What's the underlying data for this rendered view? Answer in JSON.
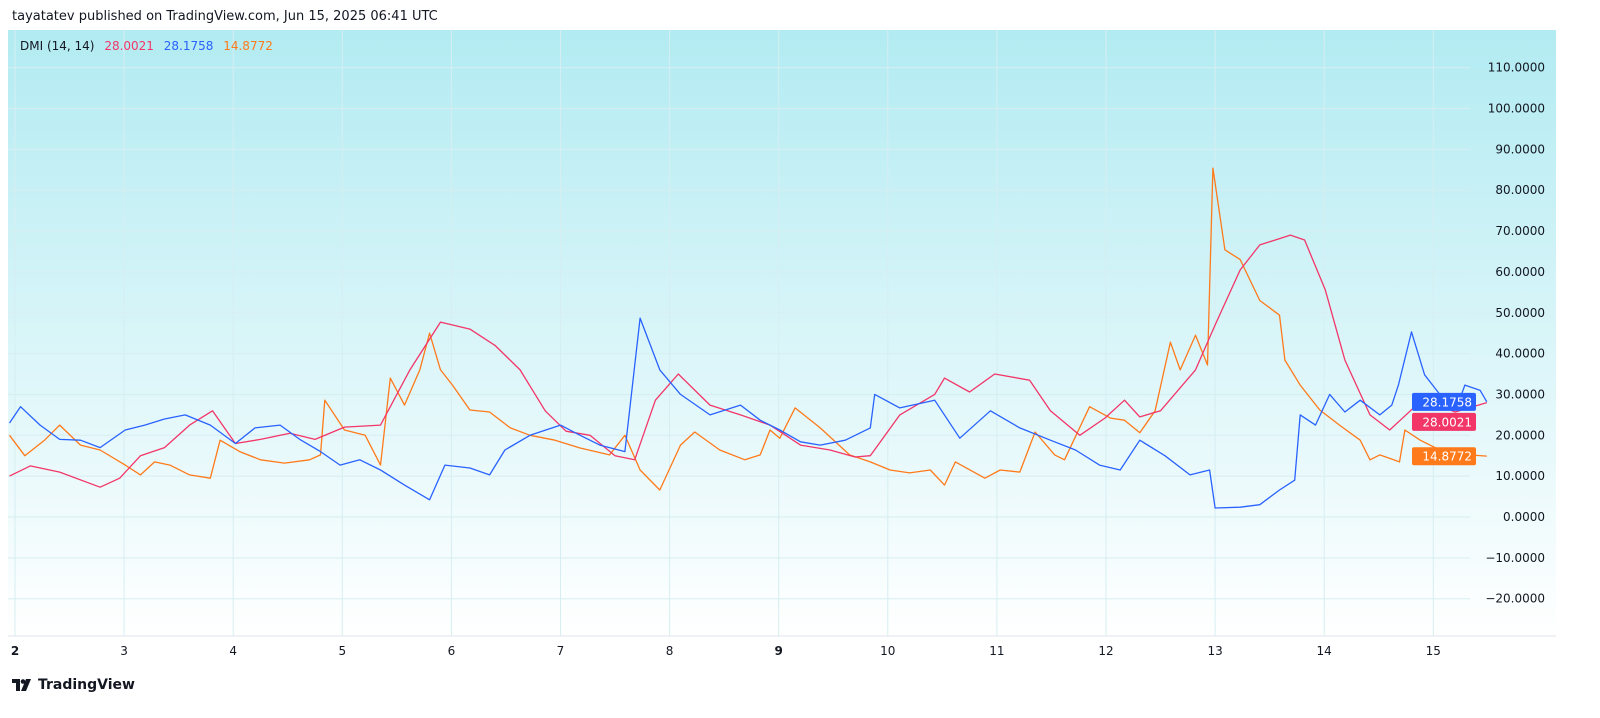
{
  "header": {
    "published": "tayatatev published on TradingView.com, Jun 15, 2025 06:41 UTC"
  },
  "legend": {
    "name": "DMI (14, 14)",
    "adx": "28.0021",
    "plus_di": "28.1758",
    "minus_di": "14.8772"
  },
  "footer": {
    "brand": "TradingView",
    "logo_icon": "tradingview-logo-icon"
  },
  "colors": {
    "adx": "#f23668",
    "plus_di": "#2962ff",
    "minus_di": "#ff7a1a",
    "bg_top": "#b2ebf2",
    "bg_bottom": "#ffffff"
  },
  "chart_data": {
    "type": "line",
    "title": "DMI (14, 14)",
    "xlim": [
      1.95,
      15.75
    ],
    "ylim": [
      -27,
      117
    ],
    "grid": true,
    "x_ticks": [
      {
        "v": 2,
        "label": "2",
        "bold": true
      },
      {
        "v": 3,
        "label": "3"
      },
      {
        "v": 4,
        "label": "4"
      },
      {
        "v": 5,
        "label": "5"
      },
      {
        "v": 6,
        "label": "6"
      },
      {
        "v": 7,
        "label": "7"
      },
      {
        "v": 8,
        "label": "8"
      },
      {
        "v": 9,
        "label": "9",
        "bold": true
      },
      {
        "v": 10,
        "label": "10"
      },
      {
        "v": 11,
        "label": "11"
      },
      {
        "v": 12,
        "label": "12"
      },
      {
        "v": 13,
        "label": "13"
      },
      {
        "v": 14,
        "label": "14"
      },
      {
        "v": 15,
        "label": "15"
      }
    ],
    "y_ticks": [
      {
        "v": 110,
        "label": "110.0000"
      },
      {
        "v": 100,
        "label": "100.0000"
      },
      {
        "v": 90,
        "label": "90.0000"
      },
      {
        "v": 80,
        "label": "80.0000"
      },
      {
        "v": 70,
        "label": "70.0000"
      },
      {
        "v": 60,
        "label": "60.0000"
      },
      {
        "v": 50,
        "label": "50.0000"
      },
      {
        "v": 40,
        "label": "40.0000"
      },
      {
        "v": 30,
        "label": "30.0000"
      },
      {
        "v": 20,
        "label": "20.0000"
      },
      {
        "v": 10,
        "label": "10.0000"
      },
      {
        "v": 0,
        "label": "0.0000"
      },
      {
        "v": -10,
        "label": "−10.0000"
      },
      {
        "v": -20,
        "label": "−20.0000"
      }
    ],
    "series": [
      {
        "key": "minus_di",
        "color": "#ff7a1a",
        "last_label": "14.8772",
        "last": 14.8772,
        "points": [
          [
            1.95,
            20
          ],
          [
            2.09,
            15
          ],
          [
            2.27,
            18.8
          ],
          [
            2.41,
            22.5
          ],
          [
            2.6,
            17.6
          ],
          [
            2.78,
            16.4
          ],
          [
            3.01,
            12.7
          ],
          [
            3.15,
            10.3
          ],
          [
            3.28,
            13.5
          ],
          [
            3.42,
            12.7
          ],
          [
            3.6,
            10.3
          ],
          [
            3.79,
            9.5
          ],
          [
            3.88,
            18.8
          ],
          [
            4.06,
            16
          ],
          [
            4.25,
            14
          ],
          [
            4.47,
            13.2
          ],
          [
            4.7,
            14
          ],
          [
            4.8,
            15.2
          ],
          [
            4.84,
            28.6
          ],
          [
            5.02,
            21.3
          ],
          [
            5.21,
            20
          ],
          [
            5.35,
            12.7
          ],
          [
            5.44,
            34
          ],
          [
            5.57,
            27.4
          ],
          [
            5.71,
            36
          ],
          [
            5.8,
            45
          ],
          [
            5.9,
            36
          ],
          [
            6.01,
            32.3
          ],
          [
            6.17,
            26.2
          ],
          [
            6.35,
            25.7
          ],
          [
            6.54,
            21.8
          ],
          [
            6.72,
            20
          ],
          [
            6.95,
            18.8
          ],
          [
            7.18,
            16.9
          ],
          [
            7.45,
            15.2
          ],
          [
            7.59,
            20
          ],
          [
            7.73,
            11.5
          ],
          [
            7.91,
            6.6
          ],
          [
            8.1,
            17.6
          ],
          [
            8.23,
            20.8
          ],
          [
            8.46,
            16.4
          ],
          [
            8.69,
            14
          ],
          [
            8.83,
            15.2
          ],
          [
            8.92,
            21.3
          ],
          [
            9.01,
            19.3
          ],
          [
            9.15,
            26.7
          ],
          [
            9.38,
            21.8
          ],
          [
            9.65,
            15.2
          ],
          [
            9.84,
            13.5
          ],
          [
            10.02,
            11.5
          ],
          [
            10.2,
            10.8
          ],
          [
            10.39,
            11.5
          ],
          [
            10.52,
            7.8
          ],
          [
            10.62,
            13.5
          ],
          [
            10.89,
            9.5
          ],
          [
            11.03,
            11.5
          ],
          [
            11.21,
            11
          ],
          [
            11.35,
            20.8
          ],
          [
            11.53,
            15.2
          ],
          [
            11.62,
            14
          ],
          [
            11.85,
            27
          ],
          [
            12.04,
            24.2
          ],
          [
            12.17,
            23.7
          ],
          [
            12.31,
            20.6
          ],
          [
            12.45,
            26
          ],
          [
            12.59,
            42.8
          ],
          [
            12.68,
            36
          ],
          [
            12.82,
            44.5
          ],
          [
            12.93,
            37.2
          ],
          [
            12.98,
            85.4
          ],
          [
            13.09,
            65.4
          ],
          [
            13.23,
            63
          ],
          [
            13.41,
            53
          ],
          [
            13.59,
            49.4
          ],
          [
            13.64,
            38.4
          ],
          [
            13.78,
            32.3
          ],
          [
            13.96,
            26.2
          ],
          [
            14.14,
            22.5
          ],
          [
            14.33,
            18.8
          ],
          [
            14.42,
            14
          ],
          [
            14.51,
            15.2
          ],
          [
            14.69,
            13.5
          ],
          [
            14.74,
            21.3
          ],
          [
            14.88,
            18.8
          ],
          [
            15.06,
            16.4
          ],
          [
            15.33,
            15.2
          ],
          [
            15.49,
            14.9
          ]
        ]
      },
      {
        "key": "adx",
        "color": "#f23668",
        "last_label": "28.0021",
        "last": 28.0021,
        "points": [
          [
            1.95,
            10
          ],
          [
            2.14,
            12.5
          ],
          [
            2.41,
            11
          ],
          [
            2.78,
            7.3
          ],
          [
            2.96,
            9.5
          ],
          [
            3.15,
            15
          ],
          [
            3.37,
            17
          ],
          [
            3.6,
            22.5
          ],
          [
            3.81,
            26
          ],
          [
            4.02,
            18
          ],
          [
            4.25,
            19
          ],
          [
            4.52,
            20.5
          ],
          [
            4.75,
            19
          ],
          [
            5.02,
            22
          ],
          [
            5.35,
            22.5
          ],
          [
            5.62,
            36
          ],
          [
            5.9,
            47.7
          ],
          [
            6.17,
            46
          ],
          [
            6.4,
            42
          ],
          [
            6.63,
            36
          ],
          [
            6.86,
            26
          ],
          [
            7.05,
            21
          ],
          [
            7.27,
            20
          ],
          [
            7.5,
            15
          ],
          [
            7.68,
            14
          ],
          [
            7.87,
            28.6
          ],
          [
            8.08,
            35
          ],
          [
            8.37,
            27.4
          ],
          [
            8.65,
            25
          ],
          [
            8.92,
            22.5
          ],
          [
            9.2,
            17.6
          ],
          [
            9.47,
            16.4
          ],
          [
            9.7,
            14.7
          ],
          [
            9.84,
            15
          ],
          [
            10.11,
            25
          ],
          [
            10.43,
            30
          ],
          [
            10.52,
            34
          ],
          [
            10.75,
            30.6
          ],
          [
            10.98,
            35
          ],
          [
            11.3,
            33.5
          ],
          [
            11.49,
            26
          ],
          [
            11.76,
            20
          ],
          [
            11.99,
            24.2
          ],
          [
            12.17,
            28.6
          ],
          [
            12.31,
            24.5
          ],
          [
            12.5,
            26
          ],
          [
            12.82,
            36
          ],
          [
            13.0,
            47
          ],
          [
            13.23,
            60.5
          ],
          [
            13.41,
            66.6
          ],
          [
            13.69,
            69
          ],
          [
            13.82,
            67.8
          ],
          [
            14.01,
            55.6
          ],
          [
            14.19,
            38.4
          ],
          [
            14.42,
            25
          ],
          [
            14.6,
            21.3
          ],
          [
            14.83,
            27
          ],
          [
            15.02,
            27.7
          ],
          [
            15.2,
            25.7
          ],
          [
            15.49,
            28
          ]
        ]
      },
      {
        "key": "plus_di",
        "color": "#2962ff",
        "last_label": "28.1758",
        "last": 28.1758,
        "points": [
          [
            1.95,
            23
          ],
          [
            2.05,
            27
          ],
          [
            2.23,
            22.5
          ],
          [
            2.41,
            19
          ],
          [
            2.6,
            18.8
          ],
          [
            2.78,
            17
          ],
          [
            3.01,
            21.3
          ],
          [
            3.19,
            22.5
          ],
          [
            3.37,
            24
          ],
          [
            3.56,
            25
          ],
          [
            3.79,
            22.5
          ],
          [
            4.02,
            18
          ],
          [
            4.2,
            21.8
          ],
          [
            4.43,
            22.5
          ],
          [
            4.61,
            19
          ],
          [
            4.8,
            16
          ],
          [
            4.98,
            12.7
          ],
          [
            5.16,
            14
          ],
          [
            5.35,
            11.5
          ],
          [
            5.57,
            7.8
          ],
          [
            5.8,
            4.2
          ],
          [
            5.94,
            12.7
          ],
          [
            6.17,
            12
          ],
          [
            6.35,
            10.3
          ],
          [
            6.49,
            16.4
          ],
          [
            6.72,
            20
          ],
          [
            7.0,
            22.5
          ],
          [
            7.18,
            20
          ],
          [
            7.36,
            17.6
          ],
          [
            7.59,
            16
          ],
          [
            7.73,
            48.7
          ],
          [
            7.91,
            36
          ],
          [
            8.1,
            30
          ],
          [
            8.37,
            25
          ],
          [
            8.65,
            27.4
          ],
          [
            8.83,
            23.7
          ],
          [
            9.01,
            21.3
          ],
          [
            9.2,
            18.4
          ],
          [
            9.38,
            17.6
          ],
          [
            9.61,
            18.8
          ],
          [
            9.84,
            21.8
          ],
          [
            9.88,
            30
          ],
          [
            10.11,
            26.7
          ],
          [
            10.43,
            28.6
          ],
          [
            10.66,
            19.3
          ],
          [
            10.94,
            26
          ],
          [
            11.21,
            21.8
          ],
          [
            11.49,
            18.8
          ],
          [
            11.72,
            16.4
          ],
          [
            11.94,
            12.7
          ],
          [
            12.13,
            11.5
          ],
          [
            12.31,
            18.8
          ],
          [
            12.54,
            15
          ],
          [
            12.77,
            10.3
          ],
          [
            12.95,
            11.5
          ],
          [
            13.0,
            2.2
          ],
          [
            13.23,
            2.4
          ],
          [
            13.41,
            3
          ],
          [
            13.59,
            6.6
          ],
          [
            13.73,
            9
          ],
          [
            13.78,
            25
          ],
          [
            13.92,
            22.5
          ],
          [
            14.05,
            30
          ],
          [
            14.19,
            25.7
          ],
          [
            14.33,
            28.6
          ],
          [
            14.51,
            25
          ],
          [
            14.62,
            27.4
          ],
          [
            14.68,
            32.3
          ],
          [
            14.8,
            45.3
          ],
          [
            14.92,
            34.8
          ],
          [
            15.06,
            30
          ],
          [
            15.23,
            28
          ],
          [
            15.29,
            32.3
          ],
          [
            15.43,
            31
          ],
          [
            15.49,
            28.2
          ]
        ]
      }
    ]
  }
}
